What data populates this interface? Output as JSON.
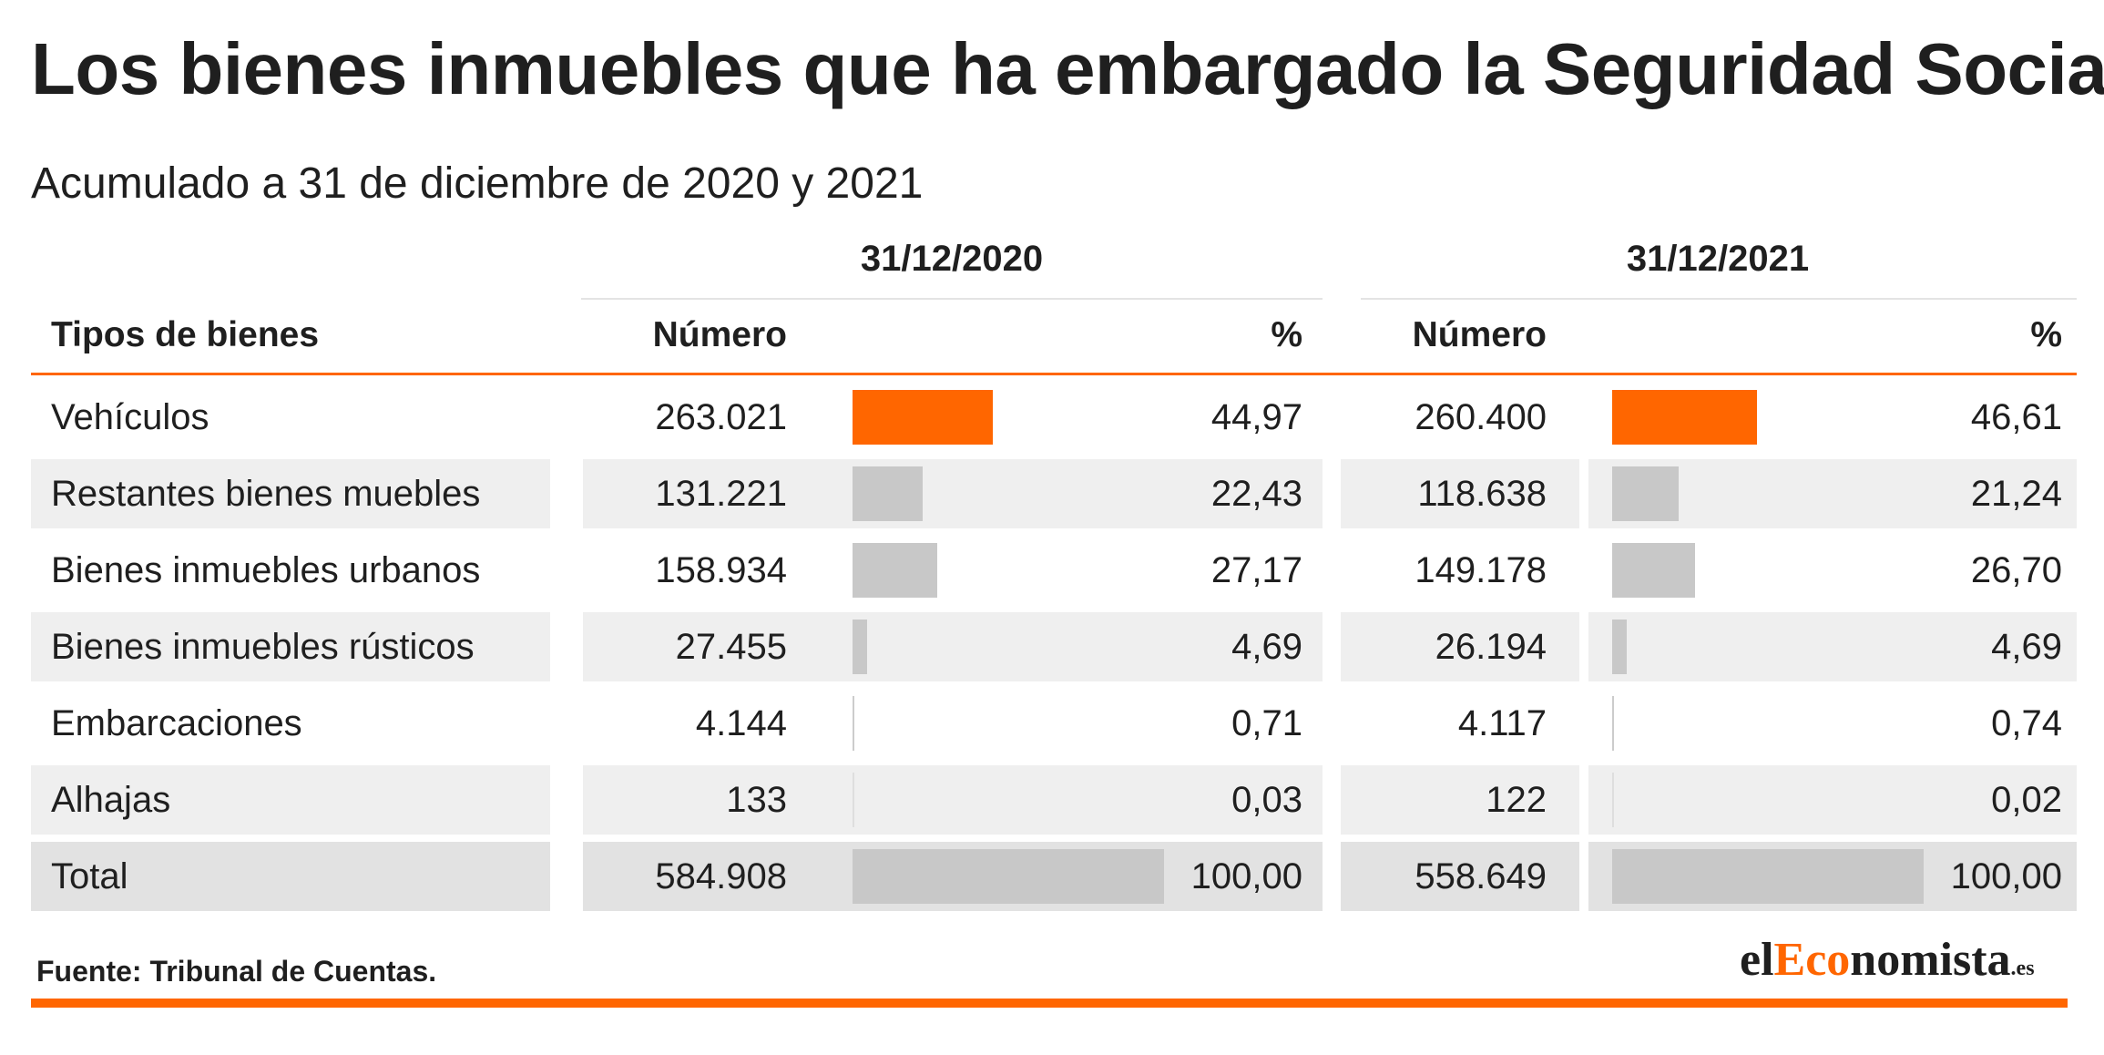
{
  "header": {
    "title": "Los bienes inmuebles que ha embargado la Seguridad Social",
    "subtitle": "Acumulado a 31 de diciembre de 2020 y 2021"
  },
  "table": {
    "group_headers": [
      "31/12/2020",
      "31/12/2021"
    ],
    "col_type": "Tipos de bienes",
    "col_number": "Número",
    "col_pct": "%"
  },
  "chart_data": {
    "type": "table",
    "title": "Los bienes inmuebles que ha embargado la Seguridad Social",
    "subtitle": "Acumulado a 31 de diciembre de 2020 y 2021",
    "periods": [
      "31/12/2020",
      "31/12/2021"
    ],
    "rows": [
      {
        "label": "Vehículos",
        "highlight": true,
        "y2020": {
          "number": "263.021",
          "pct": "44,97",
          "pct_value": 44.97
        },
        "y2021": {
          "number": "260.400",
          "pct": "46,61",
          "pct_value": 46.61
        }
      },
      {
        "label": "Restantes bienes muebles",
        "y2020": {
          "number": "131.221",
          "pct": "22,43",
          "pct_value": 22.43
        },
        "y2021": {
          "number": "118.638",
          "pct": "21,24",
          "pct_value": 21.24
        }
      },
      {
        "label": "Bienes inmuebles urbanos",
        "y2020": {
          "number": "158.934",
          "pct": "27,17",
          "pct_value": 27.17
        },
        "y2021": {
          "number": "149.178",
          "pct": "26,70",
          "pct_value": 26.7
        }
      },
      {
        "label": "Bienes inmuebles rústicos",
        "y2020": {
          "number": "27.455",
          "pct": "4,69",
          "pct_value": 4.69
        },
        "y2021": {
          "number": "26.194",
          "pct": "4,69",
          "pct_value": 4.69
        }
      },
      {
        "label": "Embarcaciones",
        "y2020": {
          "number": "4.144",
          "pct": "0,71",
          "pct_value": 0.71
        },
        "y2021": {
          "number": "4.117",
          "pct": "0,74",
          "pct_value": 0.74
        }
      },
      {
        "label": "Alhajas",
        "y2020": {
          "number": "133",
          "pct": "0,03",
          "pct_value": 0.03
        },
        "y2021": {
          "number": "122",
          "pct": "0,02",
          "pct_value": 0.02
        }
      },
      {
        "label": "Total",
        "total": true,
        "y2020": {
          "number": "584.908",
          "pct": "100,00",
          "pct_value": 100.0
        },
        "y2021": {
          "number": "558.649",
          "pct": "100,00",
          "pct_value": 100.0
        }
      }
    ],
    "bar_max": 100,
    "colors": {
      "highlight_bar": "#ff6600",
      "bar": "#c8c8c8",
      "accent": "#ff6600"
    }
  },
  "footer": {
    "source": "Fuente: Tribunal de Cuentas.",
    "logo_prefix": "el",
    "logo_accent": "Eco",
    "logo_suffix": "nomista",
    "logo_domain": ".es"
  }
}
